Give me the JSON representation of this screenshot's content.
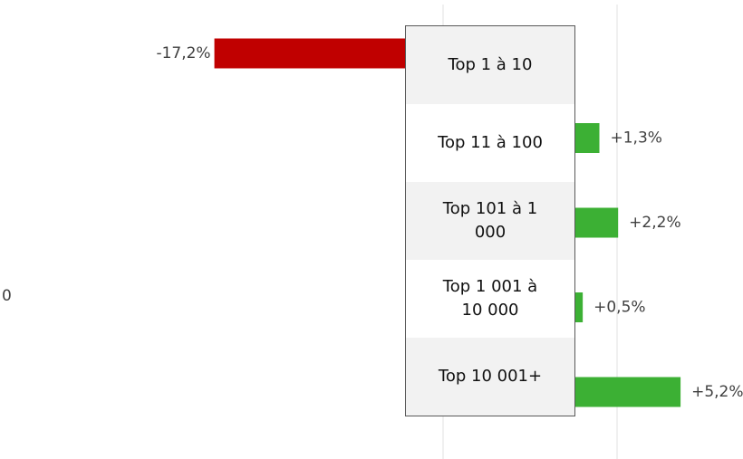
{
  "chart_data": {
    "type": "bar",
    "orientation": "horizontal",
    "categories": [
      "Top 1 à 10",
      "Top 11 à 100",
      "Top 101 à 1 000",
      "Top 1 001 à 10 000",
      "Top 10 001+"
    ],
    "values": [
      -17.2,
      1.3,
      2.2,
      0.5,
      5.2
    ],
    "value_labels": [
      "-17,2%",
      "+1,3%",
      "+2,2%",
      "+0,5%",
      "+5,2%"
    ],
    "negative_color": "#c00000",
    "positive_color": "#3cb034",
    "xlim": [
      -27.5,
      8.2
    ],
    "annotations": [
      "0"
    ]
  }
}
